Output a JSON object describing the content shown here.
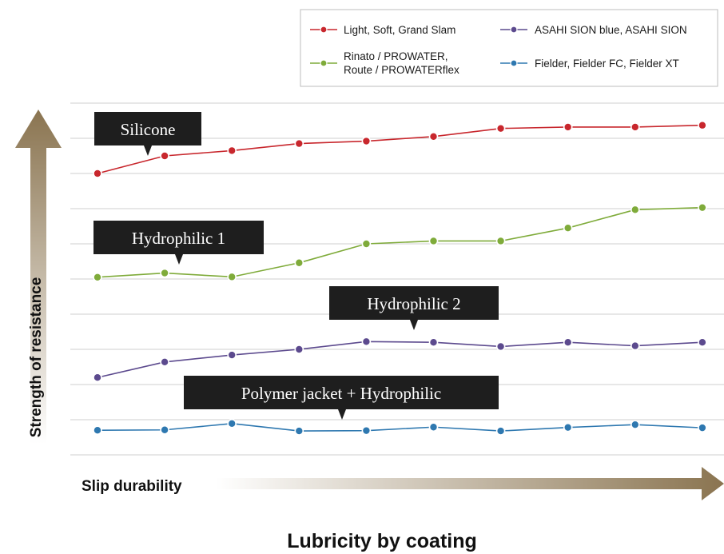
{
  "title": "Lubricity by coating",
  "chart_data": {
    "type": "line",
    "title": "Lubricity by coating",
    "xlabel": "Slip durability",
    "ylabel": "Strength of resistance",
    "x": [
      1,
      2,
      3,
      4,
      5,
      6,
      7,
      8,
      9,
      10
    ],
    "ylim": [
      0,
      10
    ],
    "grid": true,
    "legend_position": "top-right",
    "series": [
      {
        "name": "Light, Soft, Grand Slam",
        "color": "#c8272d",
        "values": [
          8.0,
          8.5,
          8.65,
          8.85,
          8.92,
          9.05,
          9.28,
          9.32,
          9.32,
          9.37
        ]
      },
      {
        "name": "Rinato / PROWATER, Route / PROWATERflex",
        "color": "#7fab3a",
        "values": [
          5.05,
          5.17,
          5.06,
          5.46,
          6.0,
          6.08,
          6.08,
          6.45,
          6.97,
          7.03
        ]
      },
      {
        "name": "ASAHI SION blue, ASAHI SION",
        "color": "#5c4a8e",
        "values": [
          2.2,
          2.64,
          2.84,
          3.0,
          3.22,
          3.2,
          3.08,
          3.2,
          3.1,
          3.2
        ]
      },
      {
        "name": "Fielder, Fielder FC, Fielder XT",
        "color": "#2e78b0",
        "values": [
          0.7,
          0.71,
          0.89,
          0.68,
          0.69,
          0.79,
          0.68,
          0.78,
          0.86,
          0.77
        ]
      }
    ],
    "legend": [
      {
        "label": "Light, Soft, Grand Slam",
        "color": "#c8272d"
      },
      {
        "label": "ASAHI SION blue, ASAHI SION",
        "color": "#5c4a8e"
      },
      {
        "label": "Rinato / PROWATER,",
        "label2": "Route / PROWATERflex",
        "color": "#7fab3a"
      },
      {
        "label": "Fielder, Fielder FC, Fielder XT",
        "color": "#2e78b0"
      }
    ],
    "annotations": [
      {
        "text": "Silicone",
        "series": 0
      },
      {
        "text": "Hydrophilic 1",
        "series": 1
      },
      {
        "text": "Hydrophilic 2",
        "series": 2
      },
      {
        "text": "Polymer jacket + Hydrophilic",
        "series": 3
      }
    ]
  }
}
